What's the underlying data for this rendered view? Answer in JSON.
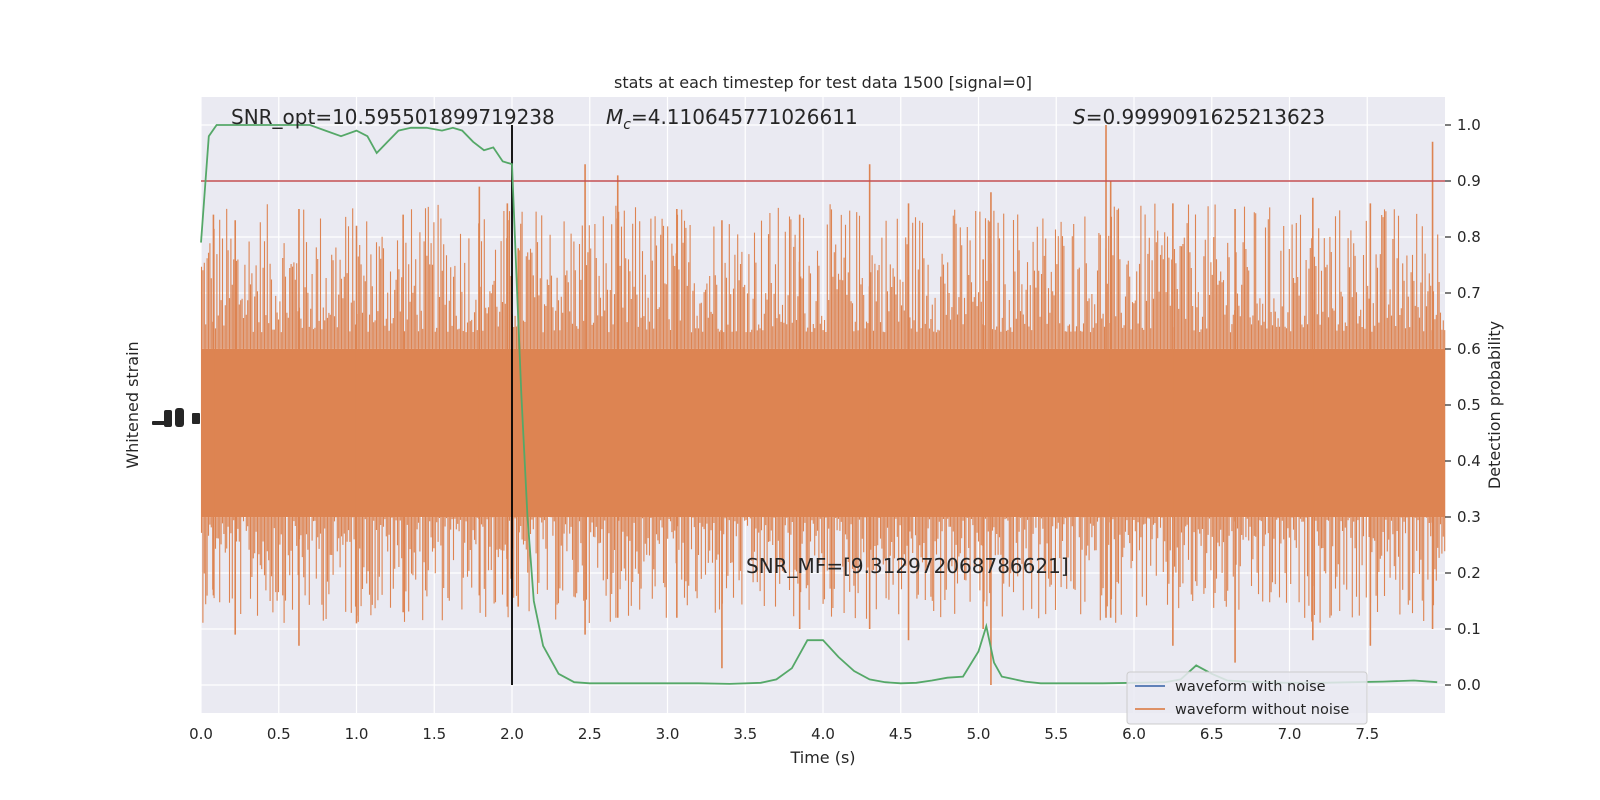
{
  "chart_data": {
    "type": "line",
    "title": "stats at each timestep for test data 1500 [signal=0]",
    "xlabel": "Time (s)",
    "ylabel_left": "Whitened strain",
    "ylabel_right": "Detection probability",
    "xlim": [
      0,
      8
    ],
    "ylim_right": [
      -0.05,
      1.05
    ],
    "x_ticks": [
      0.0,
      0.5,
      1.0,
      1.5,
      2.0,
      2.5,
      3.0,
      3.5,
      4.0,
      4.5,
      5.0,
      5.5,
      6.0,
      6.5,
      7.0,
      7.5
    ],
    "x_tick_labels": [
      "0.0",
      "0.5",
      "1.0",
      "1.5",
      "2.0",
      "2.5",
      "3.0",
      "3.5",
      "4.0",
      "4.5",
      "5.0",
      "5.5",
      "6.0",
      "6.5",
      "7.0",
      "7.5"
    ],
    "y_ticks_right": [
      0.0,
      0.1,
      0.2,
      0.3,
      0.4,
      0.5,
      0.6,
      0.7,
      0.8,
      0.9,
      1.0
    ],
    "y_tick_labels_right": [
      "0.0",
      "0.1",
      "0.2",
      "0.3",
      "0.4",
      "0.5",
      "0.6",
      "0.7",
      "0.8",
      "0.9",
      "1.0"
    ],
    "grid": true,
    "legend": {
      "placement": "lower-right",
      "entries": [
        {
          "label": "waveform with noise",
          "color": "#4c72b0"
        },
        {
          "label": "waveform without noise",
          "color": "#dd8452"
        }
      ]
    },
    "annotations": {
      "snr_opt": "SNR_opt=10.595501899719238",
      "mc_symbol": "M",
      "mc_subscript": "c",
      "mc_value": "=4.110645771026611",
      "s_symbol": "S",
      "s_value": "=0.9999091625213623",
      "snr_mf": "SNR_MF=[9.312972068786621]"
    },
    "threshold": {
      "y": 0.9,
      "color": "#c44e52"
    },
    "vline": {
      "x": 2.0,
      "color": "#000000"
    },
    "noise_band": {
      "color": "#dd8452",
      "core_range": [
        0.3,
        0.6
      ],
      "upper_typical": [
        0.63,
        0.86
      ],
      "lower_typical": [
        0.11,
        0.3
      ],
      "spikes": [
        [
          0.08,
          0.84,
          0.16
        ],
        [
          0.22,
          0.83,
          0.09
        ],
        [
          0.63,
          0.85,
          0.07
        ],
        [
          1.0,
          0.82,
          0.11
        ],
        [
          1.3,
          0.84,
          0.13
        ],
        [
          1.79,
          0.89,
          0.16
        ],
        [
          1.97,
          0.86,
          0.14
        ],
        [
          2.04,
          0.78,
          0.14
        ],
        [
          2.47,
          0.93,
          0.09
        ],
        [
          2.68,
          0.91,
          0.12
        ],
        [
          3.06,
          0.85,
          0.12
        ],
        [
          3.35,
          0.83,
          0.03
        ],
        [
          3.85,
          0.84,
          0.1
        ],
        [
          4.3,
          0.93,
          0.1
        ],
        [
          4.55,
          0.86,
          0.08
        ],
        [
          5.03,
          0.76,
          0.1
        ],
        [
          5.08,
          0.88,
          0.0
        ],
        [
          5.82,
          1.0,
          0.12
        ],
        [
          5.85,
          0.9,
          0.12
        ],
        [
          6.25,
          0.86,
          0.07
        ],
        [
          6.65,
          0.85,
          0.04
        ],
        [
          7.15,
          0.87,
          0.08
        ],
        [
          7.52,
          0.86,
          0.07
        ],
        [
          7.92,
          0.97,
          0.1
        ]
      ]
    },
    "series": [
      {
        "name": "",
        "color": "#55a868",
        "x": [
          0.0,
          0.05,
          0.1,
          0.2,
          0.3,
          0.4,
          0.5,
          0.6,
          0.7,
          0.8,
          0.9,
          1.0,
          1.07,
          1.13,
          1.2,
          1.27,
          1.35,
          1.45,
          1.55,
          1.62,
          1.68,
          1.75,
          1.82,
          1.88,
          1.94,
          2.0,
          2.03,
          2.06,
          2.1,
          2.14,
          2.2,
          2.3,
          2.4,
          2.5,
          2.6,
          2.8,
          3.0,
          3.2,
          3.4,
          3.6,
          3.7,
          3.8,
          3.9,
          4.0,
          4.1,
          4.2,
          4.3,
          4.4,
          4.5,
          4.6,
          4.7,
          4.8,
          4.9,
          5.0,
          5.05,
          5.1,
          5.15,
          5.2,
          5.3,
          5.4,
          5.5,
          5.6,
          5.8,
          6.0,
          6.2,
          6.3,
          6.4,
          6.5,
          6.6,
          6.8,
          7.0,
          7.2,
          7.4,
          7.6,
          7.8,
          7.95
        ],
        "values": [
          0.79,
          0.98,
          1.0,
          1.0,
          1.0,
          1.0,
          1.0,
          1.0,
          1.0,
          0.99,
          0.98,
          0.99,
          0.98,
          0.95,
          0.97,
          0.99,
          0.995,
          0.995,
          0.99,
          0.995,
          0.99,
          0.97,
          0.955,
          0.96,
          0.935,
          0.93,
          0.72,
          0.52,
          0.3,
          0.15,
          0.07,
          0.02,
          0.005,
          0.003,
          0.003,
          0.003,
          0.003,
          0.003,
          0.002,
          0.004,
          0.01,
          0.03,
          0.08,
          0.08,
          0.05,
          0.025,
          0.01,
          0.005,
          0.003,
          0.004,
          0.008,
          0.013,
          0.015,
          0.06,
          0.105,
          0.04,
          0.015,
          0.012,
          0.006,
          0.003,
          0.003,
          0.003,
          0.003,
          0.004,
          0.005,
          0.01,
          0.035,
          0.02,
          0.008,
          0.005,
          0.004,
          0.004,
          0.005,
          0.006,
          0.008,
          0.005
        ]
      }
    ]
  }
}
